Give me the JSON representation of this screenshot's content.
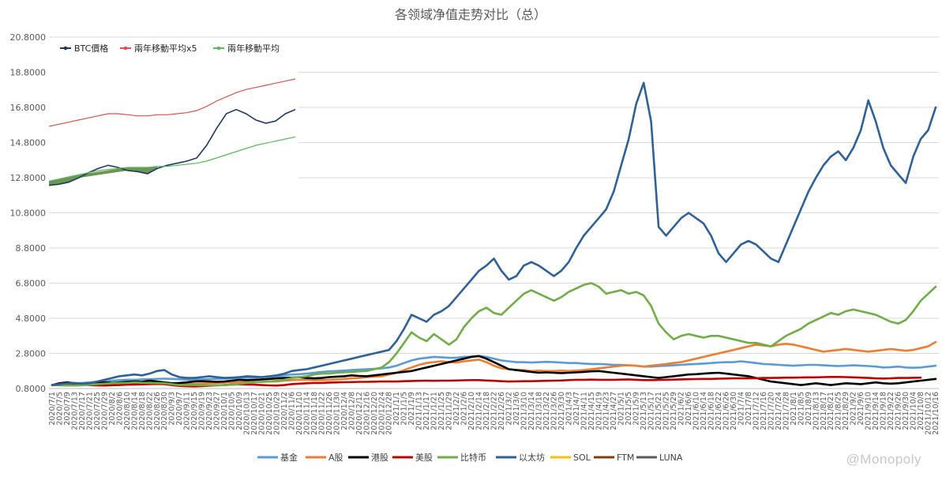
{
  "watermark": "@Monopoly",
  "chart_data": [
    {
      "type": "line",
      "title": "各领域净值走势对比（总）",
      "xlabel": "",
      "ylabel": "",
      "ylim": [
        0.8,
        20.8
      ],
      "yticks": [
        "0.8000",
        "2.8000",
        "4.8000",
        "6.8000",
        "8.8000",
        "10.8000",
        "12.8000",
        "14.8000",
        "16.8000",
        "18.8000",
        "20.8000"
      ],
      "grid": "horizontal",
      "legend_position": "bottom",
      "x_dates": [
        "2020/7/1",
        "2020/7/5",
        "2020/7/9",
        "2020/7/13",
        "2020/7/17",
        "2020/7/21",
        "2020/7/25",
        "2020/7/29",
        "2020/8/2",
        "2020/8/6",
        "2020/8/10",
        "2020/8/14",
        "2020/8/18",
        "2020/8/22",
        "2020/8/26",
        "2020/8/30",
        "2020/9/3",
        "2020/9/7",
        "2020/9/11",
        "2020/9/15",
        "2020/9/19",
        "2020/9/23",
        "2020/9/27",
        "2020/10/1",
        "2020/10/5",
        "2020/10/9",
        "2020/10/13",
        "2020/10/17",
        "2020/10/21",
        "2020/10/25",
        "2020/10/29",
        "2020/11/2",
        "2020/11/6",
        "2020/11/10",
        "2020/11/14",
        "2020/11/18",
        "2020/11/22",
        "2020/11/26",
        "2020/11/30",
        "2020/12/4",
        "2020/12/8",
        "2020/12/12",
        "2020/12/16",
        "2020/12/20",
        "2020/12/24",
        "2020/12/28",
        "2021/1/1",
        "2021/1/5",
        "2021/1/9",
        "2021/1/13",
        "2021/1/17",
        "2021/1/21",
        "2021/1/25",
        "2021/1/29",
        "2021/2/2",
        "2021/2/6",
        "2021/2/10",
        "2021/2/14",
        "2021/2/18",
        "2021/2/22",
        "2021/2/26",
        "2021/3/2",
        "2021/3/6",
        "2021/3/10",
        "2021/3/14",
        "2021/3/18",
        "2021/3/22",
        "2021/3/26",
        "2021/3/30",
        "2021/4/3",
        "2021/4/7",
        "2021/4/11",
        "2021/4/15",
        "2021/4/19",
        "2021/4/23",
        "2021/4/27",
        "2021/5/1",
        "2021/5/5",
        "2021/5/9",
        "2021/5/13",
        "2021/5/17",
        "2021/5/21",
        "2021/5/25",
        "2021/5/29",
        "2021/6/2",
        "2021/6/6",
        "2021/6/10",
        "2021/6/14",
        "2021/6/18",
        "2021/6/22",
        "2021/6/26",
        "2021/6/30",
        "2021/7/4",
        "2021/7/8",
        "2021/7/12",
        "2021/7/16",
        "2021/7/20",
        "2021/7/24",
        "2021/7/28",
        "2021/8/1",
        "2021/8/5",
        "2021/8/9",
        "2021/8/13",
        "2021/8/17",
        "2021/8/21",
        "2021/8/25",
        "2021/8/29",
        "2021/9/2",
        "2021/9/6",
        "2021/9/10",
        "2021/9/14",
        "2021/9/18",
        "2021/9/22",
        "2021/9/26",
        "2021/9/30",
        "2021/10/4",
        "2021/10/8",
        "2021/10/12",
        "2021/10/16"
      ],
      "series": [
        {
          "name": "基金",
          "color": "#5b9bd5",
          "values": [
            1.0,
            1.05,
            1.08,
            1.1,
            1.12,
            1.15,
            1.18,
            1.2,
            1.25,
            1.28,
            1.3,
            1.3,
            1.32,
            1.33,
            1.35,
            1.36,
            1.35,
            1.33,
            1.3,
            1.3,
            1.32,
            1.33,
            1.35,
            1.36,
            1.38,
            1.4,
            1.42,
            1.43,
            1.45,
            1.48,
            1.5,
            1.55,
            1.6,
            1.62,
            1.65,
            1.7,
            1.75,
            1.78,
            1.8,
            1.82,
            1.85,
            1.88,
            1.9,
            1.92,
            1.95,
            2.0,
            2.1,
            2.25,
            2.4,
            2.5,
            2.55,
            2.6,
            2.58,
            2.55,
            2.55,
            2.6,
            2.62,
            2.65,
            2.6,
            2.5,
            2.4,
            2.35,
            2.3,
            2.3,
            2.28,
            2.3,
            2.32,
            2.3,
            2.28,
            2.25,
            2.25,
            2.22,
            2.2,
            2.2,
            2.18,
            2.15,
            2.15,
            2.12,
            2.1,
            2.05,
            2.05,
            2.08,
            2.1,
            2.12,
            2.15,
            2.18,
            2.2,
            2.22,
            2.25,
            2.28,
            2.3,
            2.3,
            2.35,
            2.3,
            2.25,
            2.2,
            2.18,
            2.15,
            2.12,
            2.1,
            2.12,
            2.15,
            2.15,
            2.12,
            2.1,
            2.08,
            2.1,
            2.12,
            2.1,
            2.08,
            2.05,
            2.0,
            2.02,
            2.05,
            2.0,
            1.98,
            2.0,
            2.05,
            2.1
          ]
        },
        {
          "name": "A股",
          "color": "#ed7d31",
          "values": [
            1.0,
            1.03,
            1.05,
            1.08,
            1.05,
            1.06,
            1.08,
            1.1,
            1.12,
            1.12,
            1.1,
            1.12,
            1.14,
            1.15,
            1.14,
            1.12,
            1.1,
            1.08,
            1.05,
            1.06,
            1.08,
            1.1,
            1.12,
            1.14,
            1.15,
            1.16,
            1.18,
            1.18,
            1.18,
            1.2,
            1.2,
            1.25,
            1.28,
            1.3,
            1.3,
            1.28,
            1.28,
            1.3,
            1.32,
            1.35,
            1.38,
            1.4,
            1.45,
            1.48,
            1.5,
            1.6,
            1.7,
            1.85,
            2.0,
            2.15,
            2.25,
            2.3,
            2.35,
            2.3,
            2.28,
            2.35,
            2.4,
            2.45,
            2.3,
            2.1,
            1.95,
            1.9,
            1.85,
            1.85,
            1.8,
            1.82,
            1.8,
            1.8,
            1.82,
            1.8,
            1.82,
            1.85,
            1.9,
            1.95,
            2.0,
            2.05,
            2.1,
            2.12,
            2.1,
            2.05,
            2.1,
            2.15,
            2.2,
            2.25,
            2.3,
            2.4,
            2.5,
            2.6,
            2.7,
            2.8,
            2.9,
            3.0,
            3.1,
            3.2,
            3.3,
            3.25,
            3.2,
            3.3,
            3.35,
            3.3,
            3.2,
            3.1,
            3.0,
            2.9,
            2.95,
            3.0,
            3.05,
            3.0,
            2.95,
            2.9,
            2.95,
            3.0,
            3.05,
            3.0,
            2.95,
            3.0,
            3.1,
            3.2,
            3.45
          ]
        },
        {
          "name": "港股",
          "color": "#000000",
          "values": [
            1.0,
            1.1,
            1.15,
            1.1,
            1.05,
            1.08,
            1.1,
            1.15,
            1.12,
            1.15,
            1.18,
            1.2,
            1.18,
            1.25,
            1.2,
            1.15,
            1.1,
            1.12,
            1.15,
            1.2,
            1.22,
            1.2,
            1.18,
            1.2,
            1.25,
            1.3,
            1.28,
            1.3,
            1.32,
            1.35,
            1.38,
            1.4,
            1.42,
            1.45,
            1.4,
            1.38,
            1.4,
            1.45,
            1.48,
            1.5,
            1.55,
            1.52,
            1.5,
            1.55,
            1.6,
            1.65,
            1.7,
            1.75,
            1.8,
            1.9,
            2.0,
            2.1,
            2.2,
            2.3,
            2.4,
            2.5,
            2.6,
            2.65,
            2.5,
            2.3,
            2.1,
            1.9,
            1.85,
            1.8,
            1.75,
            1.7,
            1.72,
            1.7,
            1.68,
            1.7,
            1.72,
            1.75,
            1.78,
            1.8,
            1.75,
            1.7,
            1.65,
            1.6,
            1.55,
            1.5,
            1.45,
            1.4,
            1.45,
            1.5,
            1.55,
            1.6,
            1.62,
            1.65,
            1.68,
            1.7,
            1.65,
            1.6,
            1.55,
            1.5,
            1.4,
            1.3,
            1.2,
            1.15,
            1.1,
            1.05,
            1.0,
            1.05,
            1.1,
            1.05,
            1.0,
            1.05,
            1.1,
            1.08,
            1.05,
            1.1,
            1.15,
            1.1,
            1.08,
            1.1,
            1.15,
            1.2,
            1.25,
            1.3,
            1.35
          ]
        },
        {
          "name": "美股",
          "color": "#c00000",
          "values": [
            1.0,
            0.99,
            0.98,
            1.0,
            1.02,
            1.0,
            0.98,
            0.97,
            0.99,
            1.0,
            1.02,
            1.03,
            1.04,
            1.05,
            1.06,
            1.05,
            1.0,
            0.95,
            0.93,
            0.92,
            0.94,
            0.96,
            0.98,
            1.0,
            1.02,
            1.04,
            1.03,
            1.02,
            1.0,
            0.98,
            0.97,
            1.0,
            1.05,
            1.08,
            1.1,
            1.12,
            1.12,
            1.14,
            1.15,
            1.16,
            1.17,
            1.18,
            1.18,
            1.19,
            1.2,
            1.2,
            1.2,
            1.22,
            1.23,
            1.24,
            1.25,
            1.24,
            1.25,
            1.25,
            1.26,
            1.27,
            1.28,
            1.28,
            1.26,
            1.24,
            1.22,
            1.2,
            1.21,
            1.22,
            1.22,
            1.23,
            1.24,
            1.25,
            1.26,
            1.28,
            1.3,
            1.3,
            1.31,
            1.3,
            1.3,
            1.3,
            1.31,
            1.32,
            1.3,
            1.28,
            1.28,
            1.29,
            1.3,
            1.31,
            1.32,
            1.33,
            1.34,
            1.35,
            1.35,
            1.36,
            1.37,
            1.38,
            1.38,
            1.38,
            1.39,
            1.4,
            1.4,
            1.41,
            1.42,
            1.42,
            1.43,
            1.44,
            1.44,
            1.45,
            1.46,
            1.46,
            1.45,
            1.44,
            1.42,
            1.4,
            1.38,
            1.37,
            1.38,
            1.4,
            1.4,
            1.41,
            1.42
          ]
        },
        {
          "name": "比特币",
          "color": "#70ad47",
          "values": [
            1.0,
            1.0,
            0.98,
            0.97,
            0.99,
            1.02,
            1.05,
            1.08,
            1.1,
            1.12,
            1.12,
            1.15,
            1.13,
            1.12,
            1.11,
            1.1,
            1.05,
            1.0,
            1.0,
            1.0,
            0.99,
            0.98,
            0.98,
            1.0,
            1.02,
            1.05,
            1.12,
            1.15,
            1.18,
            1.2,
            1.25,
            1.3,
            1.4,
            1.45,
            1.5,
            1.6,
            1.65,
            1.65,
            1.7,
            1.72,
            1.75,
            1.78,
            1.8,
            1.9,
            2.0,
            2.3,
            2.8,
            3.4,
            4.0,
            3.7,
            3.5,
            3.9,
            3.6,
            3.3,
            3.6,
            4.3,
            4.8,
            5.2,
            5.4,
            5.1,
            5.0,
            5.4,
            5.8,
            6.2,
            6.4,
            6.2,
            6.0,
            5.8,
            6.0,
            6.3,
            6.5,
            6.7,
            6.8,
            6.6,
            6.2,
            6.3,
            6.4,
            6.2,
            6.3,
            6.1,
            5.5,
            4.5,
            4.0,
            3.6,
            3.8,
            3.9,
            3.8,
            3.7,
            3.8,
            3.8,
            3.7,
            3.6,
            3.5,
            3.4,
            3.4,
            3.3,
            3.2,
            3.5,
            3.8,
            4.0,
            4.2,
            4.5,
            4.7,
            4.9,
            5.1,
            5.0,
            5.2,
            5.3,
            5.2,
            5.1,
            5.0,
            4.8,
            4.6,
            4.5,
            4.7,
            5.2,
            5.8,
            6.2,
            6.6
          ]
        },
        {
          "name": "以太坊",
          "color": "#2e6197",
          "values": [
            1.0,
            1.05,
            1.1,
            1.12,
            1.08,
            1.1,
            1.2,
            1.3,
            1.4,
            1.5,
            1.55,
            1.6,
            1.55,
            1.65,
            1.8,
            1.85,
            1.6,
            1.45,
            1.4,
            1.4,
            1.45,
            1.5,
            1.45,
            1.4,
            1.42,
            1.45,
            1.5,
            1.48,
            1.45,
            1.5,
            1.55,
            1.65,
            1.8,
            1.85,
            1.9,
            2.0,
            2.1,
            2.2,
            2.3,
            2.4,
            2.5,
            2.6,
            2.7,
            2.8,
            2.9,
            3.0,
            3.5,
            4.2,
            5.0,
            4.8,
            4.6,
            5.0,
            5.2,
            5.5,
            6.0,
            6.5,
            7.0,
            7.5,
            7.8,
            8.2,
            7.5,
            7.0,
            7.2,
            7.8,
            8.0,
            7.8,
            7.5,
            7.2,
            7.5,
            8.0,
            8.8,
            9.5,
            10.0,
            10.5,
            11.0,
            12.0,
            13.5,
            15.0,
            17.0,
            18.2,
            16.0,
            10.0,
            9.5,
            10.0,
            10.5,
            10.8,
            10.5,
            10.2,
            9.5,
            8.5,
            8.0,
            8.5,
            9.0,
            9.2,
            9.0,
            8.6,
            8.2,
            8.0,
            9.0,
            10.0,
            11.0,
            12.0,
            12.8,
            13.5,
            14.0,
            14.3,
            13.8,
            14.5,
            15.5,
            17.2,
            16.0,
            14.5,
            13.5,
            13.0,
            12.5,
            14.0,
            15.0,
            15.5,
            16.8
          ]
        },
        {
          "name": "SOL",
          "color": "#ffc000",
          "values": []
        },
        {
          "name": "FTM",
          "color": "#843c0c",
          "values": []
        },
        {
          "name": "LUNA",
          "color": "#595959",
          "values": []
        }
      ],
      "inset": {
        "type": "line",
        "legend": [
          "BTC價格",
          "兩年移動平均x5",
          "兩年移動平均"
        ],
        "colors": [
          "#1f3864",
          "#d9534f",
          "#5cb85c"
        ],
        "fill_color": "#548235",
        "series": [
          {
            "name": "BTC價格",
            "values": [
              1.0,
              1.1,
              1.3,
              1.7,
              2.2,
              2.6,
              2.9,
              2.7,
              2.4,
              2.3,
              2.1,
              2.6,
              2.9,
              3.1,
              3.3,
              3.6,
              4.8,
              6.4,
              7.8,
              8.2,
              7.8,
              7.2,
              6.9,
              7.1,
              7.8,
              8.2
            ]
          },
          {
            "name": "兩年移動平均x5",
            "values": [
              6.6,
              6.8,
              7.0,
              7.2,
              7.4,
              7.6,
              7.8,
              7.8,
              7.7,
              7.6,
              7.6,
              7.7,
              7.7,
              7.8,
              7.9,
              8.1,
              8.5,
              9.0,
              9.4,
              9.8,
              10.1,
              10.3,
              10.5,
              10.7,
              10.9,
              11.1
            ]
          },
          {
            "name": "兩年移動平均",
            "values": [
              1.4,
              1.6,
              1.8,
              2.0,
              2.2,
              2.4,
              2.5,
              2.6,
              2.7,
              2.7,
              2.7,
              2.8,
              2.8,
              2.9,
              3.0,
              3.1,
              3.3,
              3.6,
              3.9,
              4.2,
              4.5,
              4.8,
              5.0,
              5.2,
              5.4,
              5.6
            ]
          }
        ]
      }
    }
  ]
}
